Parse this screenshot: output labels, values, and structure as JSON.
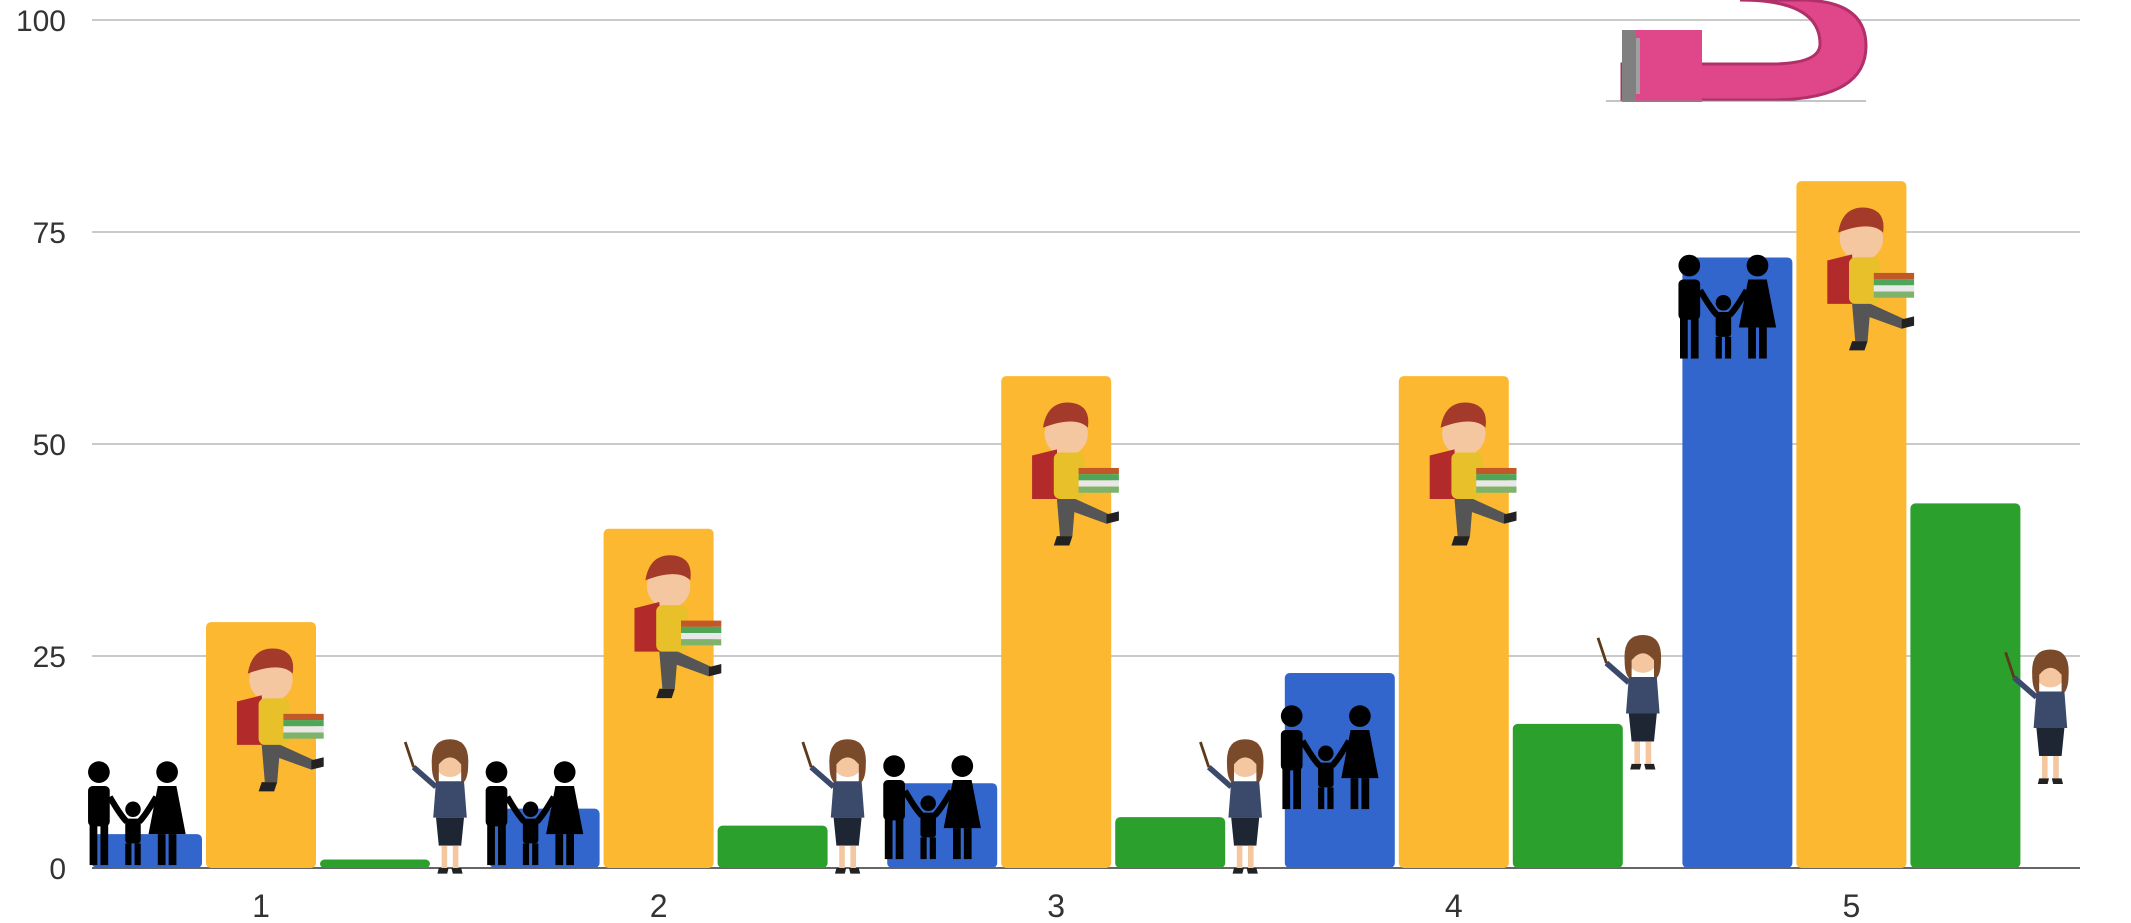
{
  "chart_data": {
    "type": "bar",
    "title": "",
    "xlabel": "",
    "ylabel": "",
    "categories": [
      "1",
      "2",
      "3",
      "4",
      "5"
    ],
    "ylim": [
      0,
      100
    ],
    "yticks": [
      "0",
      "25",
      "50",
      "75",
      "100"
    ],
    "grid": true,
    "legend": "none",
    "series": [
      {
        "color": "#3366CC",
        "icon": "family-icon",
        "values": [
          4,
          7,
          10,
          23,
          72
        ]
      },
      {
        "color": "#FBB830",
        "icon": "student-icon",
        "values": [
          29,
          40,
          58,
          58,
          81
        ]
      },
      {
        "color": "#2CA02C",
        "icon": "teacher-icon",
        "values": [
          1,
          5,
          6,
          17,
          43
        ]
      }
    ]
  },
  "decoration": {
    "icon": "magnet-icon",
    "color": "#E0468A"
  }
}
